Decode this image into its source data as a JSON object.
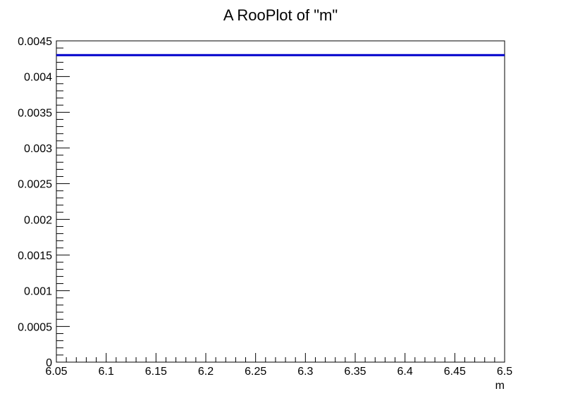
{
  "chart_data": {
    "type": "line",
    "title": "A RooPlot of \"m\"",
    "xlabel": "m",
    "ylabel": "",
    "xlim": [
      6.05,
      6.5
    ],
    "ylim": [
      0,
      0.0045
    ],
    "x_ticks": [
      "6.05",
      "6.1",
      "6.15",
      "6.2",
      "6.25",
      "6.3",
      "6.35",
      "6.4",
      "6.45",
      "6.5"
    ],
    "y_ticks": [
      "0",
      "0.0005",
      "0.001",
      "0.0015",
      "0.002",
      "0.0025",
      "0.003",
      "0.0035",
      "0.004",
      "0.0045"
    ],
    "grid": false,
    "series": [
      {
        "color": "#0000cc",
        "x": [
          6.05,
          6.5
        ],
        "y": [
          0.0043,
          0.0043
        ]
      }
    ]
  }
}
